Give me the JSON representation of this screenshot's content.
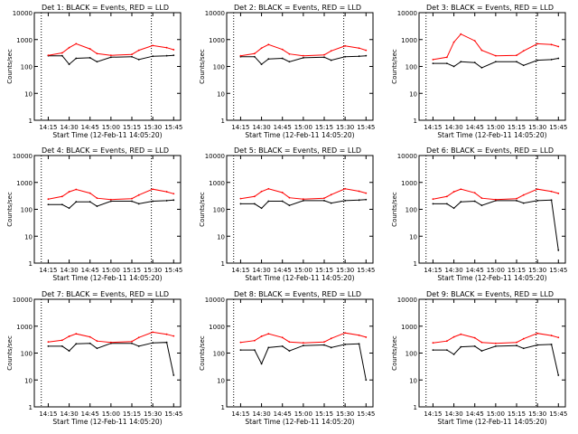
{
  "figure": {
    "x_title": "Start Time (12-Feb-11 14:05:20)",
    "y_title": "Counts/sec",
    "x_ticks": [
      "14:15",
      "14:30",
      "14:45",
      "15:00",
      "15:15",
      "15:30",
      "15:45"
    ],
    "y_ticks": [
      "1",
      "10",
      "100",
      "1000",
      "10000"
    ]
  },
  "chart_data": [
    {
      "type": "line",
      "title": "Det 1: BLACK = Events, RED = LLD",
      "xlabel": "Start Time (12-Feb-11 14:05:20)",
      "ylabel": "Counts/sec",
      "yscale": "log",
      "xlim": [
        "14:05",
        "15:50"
      ],
      "ylim": [
        1,
        10000
      ],
      "x": [
        "14:15",
        "14:25",
        "14:30",
        "14:35",
        "14:45",
        "14:50",
        "15:00",
        "15:15",
        "15:20",
        "15:30",
        "15:40",
        "15:45"
      ],
      "series": [
        {
          "name": "Events",
          "color": "#000000",
          "values": [
            250,
            250,
            120,
            200,
            210,
            150,
            220,
            230,
            180,
            240,
            250,
            260
          ]
        },
        {
          "name": "LLD",
          "color": "#ff0000",
          "values": [
            260,
            320,
            500,
            700,
            450,
            300,
            260,
            280,
            400,
            600,
            500,
            420
          ]
        }
      ]
    },
    {
      "type": "line",
      "title": "Det 2: BLACK = Events, RED = LLD",
      "xlabel": "Start Time (12-Feb-11 14:05:20)",
      "ylabel": "Counts/sec",
      "yscale": "log",
      "xlim": [
        "14:05",
        "15:50"
      ],
      "ylim": [
        1,
        10000
      ],
      "x": [
        "14:15",
        "14:25",
        "14:30",
        "14:35",
        "14:45",
        "14:50",
        "15:00",
        "15:15",
        "15:20",
        "15:30",
        "15:40",
        "15:45"
      ],
      "series": [
        {
          "name": "Events",
          "color": "#000000",
          "values": [
            230,
            230,
            120,
            190,
            200,
            150,
            210,
            220,
            170,
            230,
            240,
            250
          ]
        },
        {
          "name": "LLD",
          "color": "#ff0000",
          "values": [
            250,
            300,
            480,
            650,
            430,
            290,
            250,
            270,
            380,
            580,
            480,
            400
          ]
        }
      ]
    },
    {
      "type": "line",
      "title": "Det 3: BLACK = Events, RED = LLD",
      "xlabel": "Start Time (12-Feb-11 14:05:20)",
      "ylabel": "Counts/sec",
      "yscale": "log",
      "xlim": [
        "14:05",
        "15:50"
      ],
      "ylim": [
        1,
        10000
      ],
      "x": [
        "14:15",
        "14:25",
        "14:30",
        "14:35",
        "14:45",
        "14:50",
        "15:00",
        "15:15",
        "15:20",
        "15:30",
        "15:40",
        "15:45"
      ],
      "series": [
        {
          "name": "Events",
          "color": "#000000",
          "values": [
            130,
            130,
            100,
            150,
            140,
            90,
            150,
            150,
            110,
            170,
            180,
            200
          ]
        },
        {
          "name": "LLD",
          "color": "#ff0000",
          "values": [
            180,
            220,
            800,
            1600,
            900,
            400,
            250,
            260,
            380,
            700,
            650,
            550
          ]
        }
      ]
    },
    {
      "type": "line",
      "title": "Det 4: BLACK = Events, RED = LLD",
      "xlabel": "Start Time (12-Feb-11 14:05:20)",
      "ylabel": "Counts/sec",
      "yscale": "log",
      "xlim": [
        "14:05",
        "15:50"
      ],
      "ylim": [
        1,
        10000
      ],
      "x": [
        "14:15",
        "14:25",
        "14:30",
        "14:35",
        "14:45",
        "14:50",
        "15:00",
        "15:15",
        "15:20",
        "15:30",
        "15:40",
        "15:45"
      ],
      "series": [
        {
          "name": "Events",
          "color": "#000000",
          "values": [
            150,
            150,
            110,
            190,
            190,
            130,
            200,
            200,
            160,
            200,
            210,
            220
          ]
        },
        {
          "name": "LLD",
          "color": "#ff0000",
          "values": [
            240,
            300,
            450,
            550,
            400,
            260,
            230,
            250,
            340,
            560,
            450,
            380
          ]
        }
      ]
    },
    {
      "type": "line",
      "title": "Det 5: BLACK = Events, RED = LLD",
      "xlabel": "Start Time (12-Feb-11 14:05:20)",
      "ylabel": "Counts/sec",
      "yscale": "log",
      "xlim": [
        "14:05",
        "15:50"
      ],
      "ylim": [
        1,
        10000
      ],
      "x": [
        "14:15",
        "14:25",
        "14:30",
        "14:35",
        "14:45",
        "14:50",
        "15:00",
        "15:15",
        "15:20",
        "15:30",
        "15:40",
        "15:45"
      ],
      "series": [
        {
          "name": "Events",
          "color": "#000000",
          "values": [
            160,
            160,
            110,
            200,
            200,
            140,
            210,
            210,
            170,
            210,
            220,
            230
          ]
        },
        {
          "name": "LLD",
          "color": "#ff0000",
          "values": [
            250,
            300,
            460,
            580,
            420,
            270,
            240,
            260,
            350,
            580,
            470,
            400
          ]
        }
      ]
    },
    {
      "type": "line",
      "title": "Det 6: BLACK = Events, RED = LLD",
      "xlabel": "Start Time (12-Feb-11 14:05:20)",
      "ylabel": "Counts/sec",
      "yscale": "log",
      "xlim": [
        "14:05",
        "15:50"
      ],
      "ylim": [
        1,
        10000
      ],
      "x": [
        "14:15",
        "14:25",
        "14:30",
        "14:35",
        "14:45",
        "14:50",
        "15:00",
        "15:15",
        "15:20",
        "15:30",
        "15:40",
        "15:45"
      ],
      "series": [
        {
          "name": "Events",
          "color": "#000000",
          "values": [
            160,
            160,
            110,
            190,
            200,
            140,
            210,
            210,
            170,
            210,
            220,
            3
          ]
        },
        {
          "name": "LLD",
          "color": "#ff0000",
          "values": [
            240,
            300,
            450,
            560,
            410,
            260,
            230,
            250,
            340,
            560,
            460,
            390
          ]
        }
      ]
    },
    {
      "type": "line",
      "title": "Det 7: BLACK = Events, RED = LLD",
      "xlabel": "Start Time (12-Feb-11 14:05:20)",
      "ylabel": "Counts/sec",
      "yscale": "log",
      "xlim": [
        "14:05",
        "15:50"
      ],
      "ylim": [
        1,
        10000
      ],
      "x": [
        "14:15",
        "14:25",
        "14:30",
        "14:35",
        "14:45",
        "14:50",
        "15:00",
        "15:15",
        "15:20",
        "15:30",
        "15:40",
        "15:45"
      ],
      "series": [
        {
          "name": "Events",
          "color": "#000000",
          "values": [
            180,
            180,
            120,
            220,
            230,
            150,
            230,
            230,
            180,
            240,
            250,
            15
          ]
        },
        {
          "name": "LLD",
          "color": "#ff0000",
          "values": [
            260,
            300,
            420,
            520,
            400,
            280,
            250,
            270,
            380,
            600,
            500,
            430
          ]
        }
      ]
    },
    {
      "type": "line",
      "title": "Det 8: BLACK = Events, RED = LLD",
      "xlabel": "Start Time (12-Feb-11 14:05:20)",
      "ylabel": "Counts/sec",
      "yscale": "log",
      "xlim": [
        "14:05",
        "15:50"
      ],
      "ylim": [
        1,
        10000
      ],
      "x": [
        "14:15",
        "14:25",
        "14:30",
        "14:35",
        "14:45",
        "14:50",
        "15:00",
        "15:15",
        "15:20",
        "15:30",
        "15:40",
        "15:45"
      ],
      "series": [
        {
          "name": "Events",
          "color": "#000000",
          "values": [
            130,
            130,
            40,
            160,
            180,
            120,
            190,
            200,
            160,
            210,
            220,
            10
          ]
        },
        {
          "name": "LLD",
          "color": "#ff0000",
          "values": [
            250,
            290,
            420,
            520,
            380,
            260,
            240,
            260,
            350,
            560,
            460,
            390
          ]
        }
      ]
    },
    {
      "type": "line",
      "title": "Det 9: BLACK = Events, RED = LLD",
      "xlabel": "Start Time (12-Feb-11 14:05:20)",
      "ylabel": "Counts/sec",
      "yscale": "log",
      "xlim": [
        "14:05",
        "15:50"
      ],
      "ylim": [
        1,
        10000
      ],
      "x": [
        "14:15",
        "14:25",
        "14:30",
        "14:35",
        "14:45",
        "14:50",
        "15:00",
        "15:15",
        "15:20",
        "15:30",
        "15:40",
        "15:45"
      ],
      "series": [
        {
          "name": "Events",
          "color": "#000000",
          "values": [
            130,
            130,
            90,
            170,
            180,
            120,
            180,
            190,
            150,
            200,
            210,
            15
          ]
        },
        {
          "name": "LLD",
          "color": "#ff0000",
          "values": [
            240,
            280,
            400,
            500,
            370,
            250,
            230,
            250,
            340,
            540,
            450,
            380
          ]
        }
      ]
    }
  ]
}
